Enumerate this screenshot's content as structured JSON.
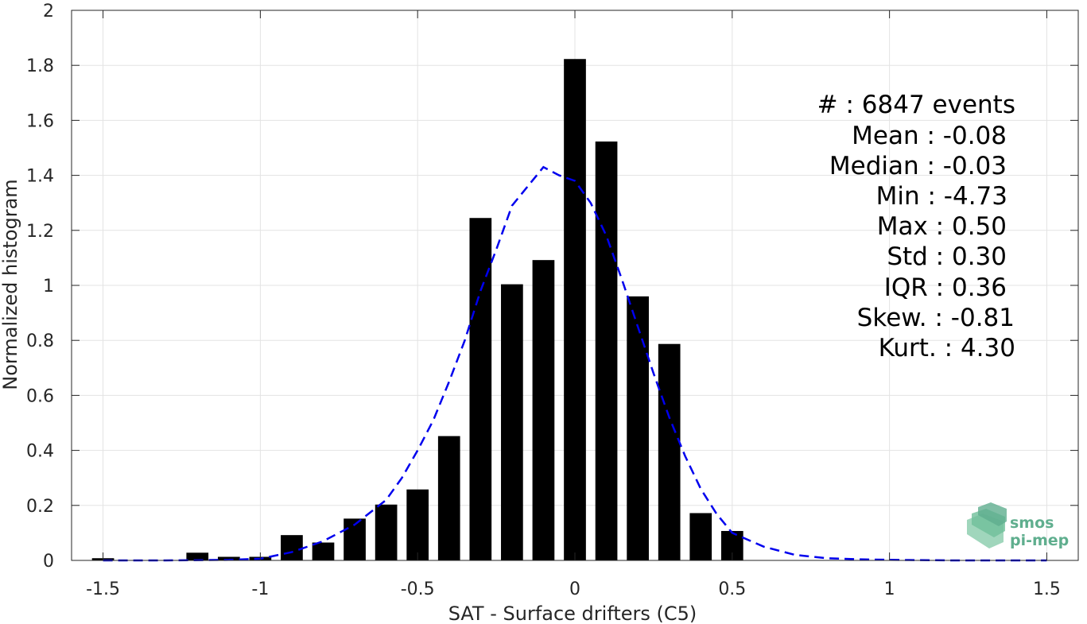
{
  "chart_data": {
    "type": "bar",
    "xlabel": "SAT - Surface drifters (C5)",
    "ylabel": "Normalized histogram",
    "xlim": [
      -1.6,
      1.6
    ],
    "ylim": [
      0,
      2
    ],
    "x_ticks": [
      -1.5,
      -1,
      -0.5,
      0,
      0.5,
      1,
      1.5
    ],
    "x_tick_labels": [
      "-1.5",
      "-1",
      "-0.5",
      "0",
      "0.5",
      "1",
      "1.5"
    ],
    "y_ticks": [
      0,
      0.2,
      0.4,
      0.6,
      0.8,
      1,
      1.2,
      1.4,
      1.6,
      1.8,
      2
    ],
    "y_tick_labels": [
      "0",
      "0.2",
      "0.4",
      "0.6",
      "0.8",
      "1",
      "1.2",
      "1.4",
      "1.6",
      "1.8",
      "2"
    ],
    "grid": true,
    "bar_width": 0.07,
    "bar_color": "#000000",
    "bars": [
      {
        "x": -1.5,
        "y": 0.008
      },
      {
        "x": -1.2,
        "y": 0.028
      },
      {
        "x": -1.1,
        "y": 0.013
      },
      {
        "x": -1.0,
        "y": 0.013
      },
      {
        "x": -0.9,
        "y": 0.092
      },
      {
        "x": -0.8,
        "y": 0.065
      },
      {
        "x": -0.7,
        "y": 0.152
      },
      {
        "x": -0.6,
        "y": 0.203
      },
      {
        "x": -0.5,
        "y": 0.258
      },
      {
        "x": -0.4,
        "y": 0.452
      },
      {
        "x": -0.3,
        "y": 1.245
      },
      {
        "x": -0.2,
        "y": 1.004
      },
      {
        "x": -0.1,
        "y": 1.092
      },
      {
        "x": 0.0,
        "y": 1.823
      },
      {
        "x": 0.1,
        "y": 1.523
      },
      {
        "x": 0.2,
        "y": 0.96
      },
      {
        "x": 0.3,
        "y": 0.787
      },
      {
        "x": 0.4,
        "y": 0.172
      },
      {
        "x": 0.5,
        "y": 0.107
      }
    ],
    "fit_curve": {
      "color": "#0000ee",
      "style": "dashed",
      "points": [
        [
          -1.5,
          0.0
        ],
        [
          -1.3,
          0.0
        ],
        [
          -1.1,
          0.002
        ],
        [
          -1.0,
          0.006
        ],
        [
          -0.9,
          0.03
        ],
        [
          -0.8,
          0.07
        ],
        [
          -0.7,
          0.13
        ],
        [
          -0.6,
          0.22
        ],
        [
          -0.55,
          0.3
        ],
        [
          -0.5,
          0.4
        ],
        [
          -0.45,
          0.51
        ],
        [
          -0.4,
          0.65
        ],
        [
          -0.35,
          0.8
        ],
        [
          -0.3,
          0.98
        ],
        [
          -0.25,
          1.13
        ],
        [
          -0.2,
          1.29
        ],
        [
          -0.15,
          1.36
        ],
        [
          -0.1,
          1.43
        ],
        [
          -0.05,
          1.4
        ],
        [
          0.0,
          1.38
        ],
        [
          0.05,
          1.3
        ],
        [
          0.1,
          1.18
        ],
        [
          0.15,
          1.02
        ],
        [
          0.2,
          0.85
        ],
        [
          0.25,
          0.68
        ],
        [
          0.3,
          0.52
        ],
        [
          0.35,
          0.38
        ],
        [
          0.4,
          0.26
        ],
        [
          0.45,
          0.17
        ],
        [
          0.5,
          0.1
        ],
        [
          0.6,
          0.05
        ],
        [
          0.7,
          0.02
        ],
        [
          0.8,
          0.008
        ],
        [
          0.9,
          0.004
        ],
        [
          1.0,
          0.002
        ],
        [
          1.2,
          0.0
        ],
        [
          1.5,
          0.0
        ]
      ]
    },
    "annotations": [
      "#  : 6847 events",
      "Mean : -0.08",
      "Median : -0.03",
      "Min : -4.73",
      "Max : 0.50",
      "Std : 0.30",
      "IQR : 0.36",
      "Skew. : -0.81",
      "Kurt. : 4.30"
    ]
  },
  "logo": {
    "line1": "smos",
    "line2": "pi-mep",
    "color": "#5fae8e"
  }
}
